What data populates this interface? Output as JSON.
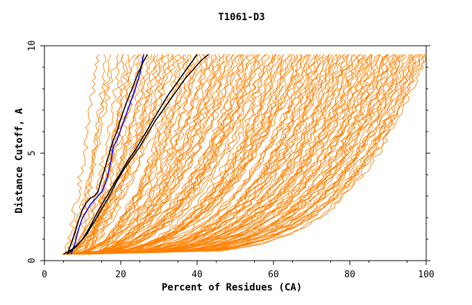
{
  "chart_data": {
    "type": "line",
    "title": "T1061-D3",
    "xlabel": "Percent of Residues (CA)",
    "ylabel": "Distance Cutoff, A",
    "xlim": [
      0,
      100
    ],
    "ylim": [
      0,
      10
    ],
    "x_ticks": [
      "0",
      "20",
      "40",
      "60",
      "80",
      "100"
    ],
    "y_ticks": [
      "0",
      "5",
      "10"
    ],
    "grid": false,
    "colors": {
      "background": "#000000",
      "highlight_blue": "#0000ff",
      "highlight_black": "#000000"
    },
    "background_lines_color": "#ff8000",
    "background_lines_count": 140,
    "highlight_series": [
      {
        "color": "#0000ff",
        "x": [
          7,
          8,
          9,
          10,
          11,
          12,
          13,
          14,
          15,
          16,
          16.5,
          17,
          17.5,
          18,
          19,
          20,
          21,
          22,
          23,
          24,
          25,
          26
        ],
        "y": [
          0.3,
          0.8,
          1.5,
          2.0,
          2.3,
          2.6,
          2.8,
          3.0,
          3.2,
          3.6,
          3.9,
          4.3,
          4.7,
          5.3,
          5.6,
          6.1,
          6.6,
          7.1,
          7.6,
          8.1,
          8.7,
          9.6
        ]
      },
      {
        "color": "#000000",
        "x": [
          6,
          7,
          8,
          9,
          10,
          11,
          12,
          13,
          14,
          15,
          16,
          17,
          18,
          19,
          20,
          21,
          22,
          23,
          24,
          25,
          26,
          27
        ],
        "y": [
          0.3,
          0.8,
          1.3,
          1.9,
          2.4,
          2.7,
          2.9,
          3.0,
          3.2,
          3.8,
          4.4,
          5.0,
          5.6,
          6.0,
          6.6,
          7.1,
          7.6,
          8.0,
          8.5,
          8.9,
          9.3,
          9.6
        ]
      },
      {
        "color": "#000000",
        "x": [
          5,
          7,
          9,
          11,
          13,
          15,
          17,
          19,
          21,
          23,
          25,
          27,
          29,
          31,
          33,
          35,
          37,
          39,
          41,
          43
        ],
        "y": [
          0.3,
          0.5,
          0.8,
          1.2,
          1.8,
          2.4,
          3.0,
          3.7,
          4.3,
          4.8,
          5.3,
          5.9,
          6.5,
          7.0,
          7.5,
          8.0,
          8.5,
          8.9,
          9.3,
          9.6
        ]
      },
      {
        "color": "#000000",
        "x": [
          6,
          8,
          10,
          12,
          14,
          16,
          18,
          20,
          22,
          24,
          26,
          28,
          30,
          32,
          34,
          36,
          38,
          40
        ],
        "y": [
          0.3,
          0.6,
          1.0,
          1.6,
          2.3,
          2.9,
          3.5,
          4.1,
          4.7,
          5.2,
          5.8,
          6.4,
          7.0,
          7.6,
          8.1,
          8.6,
          9.1,
          9.6
        ]
      }
    ]
  }
}
